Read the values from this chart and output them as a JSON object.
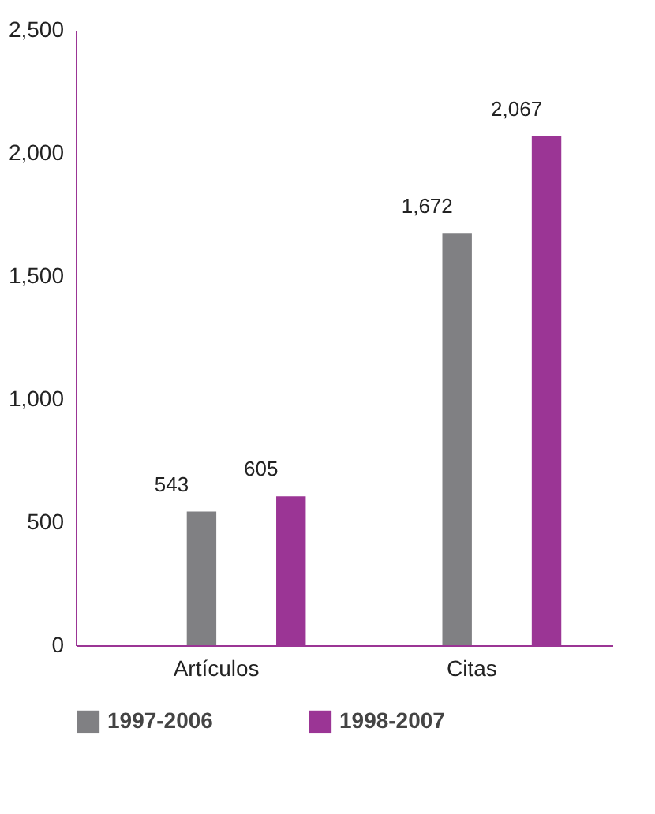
{
  "chart_data": {
    "type": "bar",
    "categories": [
      "Artículos",
      "Citas"
    ],
    "series": [
      {
        "name": "1997-2006",
        "color": "#808083",
        "values": [
          543,
          1672
        ],
        "value_labels": [
          "543",
          "1,672"
        ]
      },
      {
        "name": "1998-2007",
        "color": "#9b3595",
        "values": [
          605,
          2067
        ],
        "value_labels": [
          "605",
          "2,067"
        ]
      }
    ],
    "ylim": [
      0,
      2500
    ],
    "yticks": [
      {
        "value": 0,
        "label": "0"
      },
      {
        "value": 500,
        "label": "500"
      },
      {
        "value": 1000,
        "label": "1,000"
      },
      {
        "value": 1500,
        "label": "1,500"
      },
      {
        "value": 2000,
        "label": "2,000"
      },
      {
        "value": 2500,
        "label": "2,500"
      }
    ],
    "grid": false,
    "legend": "bottom"
  }
}
